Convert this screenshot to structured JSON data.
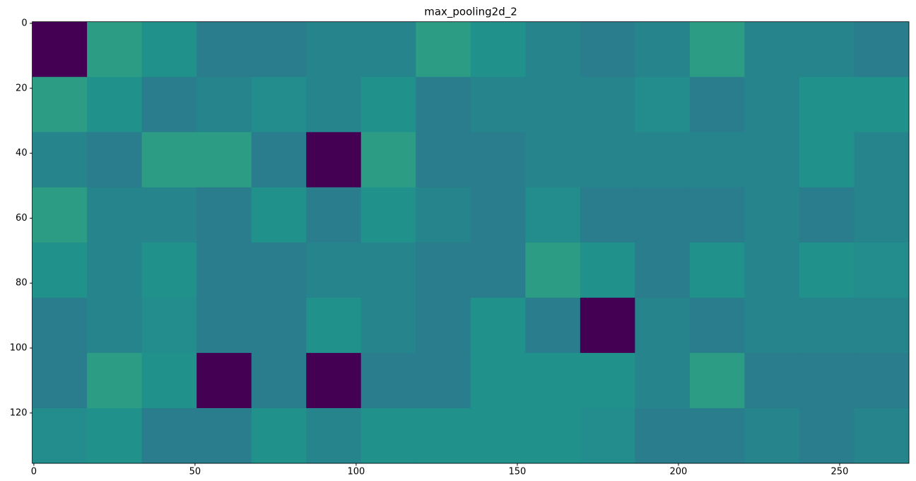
{
  "chart_data": {
    "type": "heatmap",
    "title": "max_pooling2d_2",
    "colormap": "viridis",
    "xlim": [
      -0.5,
      271.5
    ],
    "ylim": [
      135.5,
      -0.5
    ],
    "xticks": [
      0,
      50,
      100,
      150,
      200,
      250
    ],
    "yticks": [
      0,
      20,
      40,
      60,
      80,
      100,
      120
    ],
    "values": [
      [
        0,
        0.55,
        0.5,
        0.42,
        0.42,
        0.45,
        0.45,
        0.55,
        0.5,
        0.45,
        0.42,
        0.45,
        0.55,
        0.45,
        0.45,
        0.42
      ],
      [
        0.55,
        0.5,
        0.42,
        0.45,
        0.48,
        0.45,
        0.5,
        0.42,
        0.45,
        0.45,
        0.45,
        0.48,
        0.42,
        0.45,
        0.5,
        0.5
      ],
      [
        0.45,
        0.42,
        0.55,
        0.55,
        0.42,
        0,
        0.55,
        0.42,
        0.42,
        0.45,
        0.45,
        0.45,
        0.45,
        0.45,
        0.5,
        0.45
      ],
      [
        0.55,
        0.45,
        0.45,
        0.42,
        0.5,
        0.42,
        0.5,
        0.45,
        0.42,
        0.48,
        0.42,
        0.42,
        0.42,
        0.45,
        0.42,
        0.45
      ],
      [
        0.5,
        0.45,
        0.5,
        0.42,
        0.42,
        0.45,
        0.45,
        0.42,
        0.42,
        0.55,
        0.5,
        0.42,
        0.5,
        0.45,
        0.5,
        0.48
      ],
      [
        0.42,
        0.45,
        0.48,
        0.42,
        0.42,
        0.5,
        0.45,
        0.42,
        0.5,
        0.42,
        0,
        0.45,
        0.42,
        0.45,
        0.45,
        0.45
      ],
      [
        0.42,
        0.55,
        0.5,
        0,
        0.42,
        0,
        0.42,
        0.42,
        0.5,
        0.5,
        0.5,
        0.45,
        0.55,
        0.42,
        0.42,
        0.42
      ],
      [
        0.48,
        0.5,
        0.42,
        0.42,
        0.5,
        0.45,
        0.5,
        0.5,
        0.5,
        0.5,
        0.48,
        0.42,
        0.42,
        0.45,
        0.42,
        0.45
      ]
    ]
  }
}
